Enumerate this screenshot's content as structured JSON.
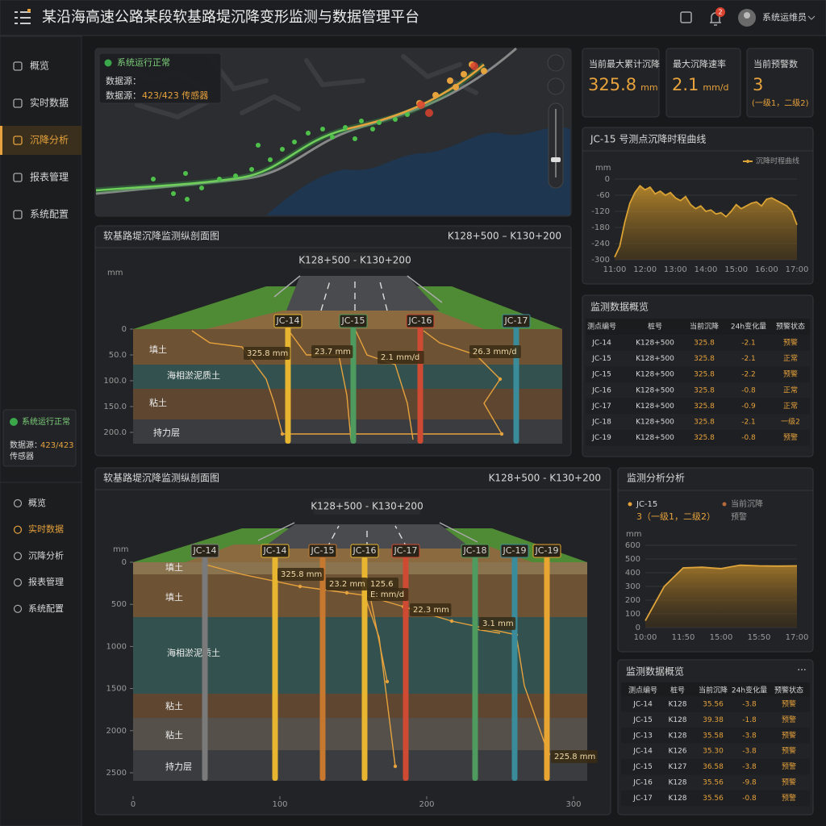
{
  "header": {
    "title": "某沿海高速公路某段软基路堤沉降变形监测与数据管理平台",
    "badge": "2",
    "user": "系统运维员"
  },
  "sidebar": {
    "nav": [
      "概览",
      "实时数据",
      "沉降分析",
      "报表管理",
      "系统配置"
    ],
    "active": 2,
    "status": "系统运行正常",
    "source_prefix": "数据源：",
    "source_value": "423/423",
    "source_suffix": "传感器",
    "nav2": [
      "概览",
      "实时数据",
      "沉降分析",
      "报表管理",
      "系统配置"
    ],
    "nav2_active": 1
  },
  "map": {
    "status": "系统运行正常",
    "source_label": "数据源：",
    "source_prefix": "数据源：",
    "source_value": "423/423 传感器"
  },
  "kpis": [
    {
      "label": "当前最大累计沉降",
      "value": "325.8",
      "unit": "mm"
    },
    {
      "label": "最大沉降速率",
      "value": "2.1",
      "unit": "mm/d"
    },
    {
      "label": "当前预警数",
      "value": "3",
      "note": "(一级1，二级2)"
    }
  ],
  "chart_data": [
    {
      "type": "area",
      "title": "JC-15 号测点沉降时程曲线",
      "y_label": "mm",
      "categories": [
        "11:00",
        null,
        null,
        null,
        null,
        null,
        "12:00",
        null,
        null,
        null,
        null,
        null,
        "13:00",
        null,
        null,
        null,
        null,
        null,
        "14:00",
        null,
        null,
        null,
        null,
        null,
        "15:00",
        null,
        null,
        null,
        null,
        null,
        "16:00",
        null,
        null,
        null,
        null,
        null,
        "17:00"
      ],
      "series": [
        {
          "name": "沉降时程曲线",
          "color": "#d9a233",
          "values": [
            -290,
            -250,
            -160,
            -90,
            -50,
            -25,
            -40,
            -30,
            -55,
            -45,
            -60,
            -50,
            -70,
            -80,
            -65,
            -95,
            -110,
            -100,
            -120,
            -115,
            -130,
            -125,
            -140,
            -120,
            -95,
            -110,
            -100,
            -90,
            -85,
            -100,
            -75,
            -70,
            -80,
            -90,
            -100,
            -120,
            -170
          ]
        }
      ],
      "ylim": [
        -300,
        0
      ],
      "yticks": [
        0,
        -60,
        -120,
        -180,
        -240,
        -300
      ],
      "grid": true
    },
    {
      "type": "area",
      "title": "监测分析分析",
      "subject": "JC-15",
      "note": "3（一级1，二级2）",
      "note2": "预警",
      "y_label": "mm",
      "categories": [
        "10:00",
        null,
        "11:50",
        null,
        "15:00",
        null,
        "15:50",
        null,
        "17:00"
      ],
      "series": [
        {
          "name": "当前沉降",
          "color": "#e0a53a",
          "values": [
            50,
            300,
            435,
            440,
            430,
            455,
            450,
            448,
            450
          ]
        }
      ],
      "ylim": [
        0,
        600
      ],
      "yticks": [
        0,
        100,
        200,
        300,
        400,
        500,
        600
      ],
      "grid": true
    }
  ],
  "tables": [
    {
      "title": "监测数据概览",
      "columns": [
        "测点编号",
        "桩号",
        "当前沉降",
        "24h变化量",
        "预警状态"
      ],
      "rows": [
        [
          "JC-14",
          "K128+500",
          "325.8",
          "-2.1",
          "预警"
        ],
        [
          "JC-15",
          "K128+500",
          "325.8",
          "-2.1",
          "正常"
        ],
        [
          "JC-15",
          "K128+500",
          "325.8",
          "-2.2",
          "预警"
        ],
        [
          "JC-16",
          "K128+500",
          "325.8",
          "-0.8",
          "正常"
        ],
        [
          "JC-17",
          "K128+500",
          "325.8",
          "-0.9",
          "正常"
        ],
        [
          "JC-18",
          "K128+500",
          "325.8",
          "-2.1",
          "一级2"
        ],
        [
          "JC-19",
          "K128+500",
          "325.8",
          "-0.8",
          "预警"
        ]
      ]
    },
    {
      "title": "监测数据概览",
      "menu": "···",
      "columns": [
        "测点编号",
        "桩号",
        "当前沉降",
        "24h变化量",
        "预警状态"
      ],
      "rows": [
        [
          "JC-14",
          "K128",
          "35.56",
          "-3.8",
          "预警"
        ],
        [
          "JC-15",
          "K128",
          "39.38",
          "-1.8",
          "预警"
        ],
        [
          "JC-13",
          "K128",
          "35.58",
          "-3.8",
          "预警"
        ],
        [
          "JC-14",
          "K126",
          "35.30",
          "-3.8",
          "预警"
        ],
        [
          "JC-15",
          "K127",
          "36.58",
          "-3.8",
          "预警"
        ],
        [
          "JC-16",
          "K128",
          "35.56",
          "-9.8",
          "预警"
        ],
        [
          "JC-17",
          "K128",
          "35.56",
          "-0.8",
          "预警"
        ]
      ]
    }
  ],
  "profiles": [
    {
      "title": "软基路堤沉降监测纵剖面图",
      "range": "K128+500 – K130+200",
      "section_label": "K128+500 - K130+200",
      "y_label": "mm",
      "ylim": [
        0,
        200
      ],
      "yticks": [
        0,
        {
          "value": 50,
          "label": "50.0"
        },
        {
          "value": 100,
          "label": "100.0"
        },
        {
          "value": 150,
          "label": "150.0"
        },
        {
          "value": 200,
          "label": "200.0"
        }
      ],
      "layers": [
        "填土",
        "海相淤泥质土",
        "粘土",
        "持力层"
      ],
      "sensors": [
        {
          "name": "JC-14",
          "color": "#e8b531"
        },
        {
          "name": "JC-15",
          "color": "#4f9a5e"
        },
        {
          "name": "JC-16",
          "color": "#cf4a33"
        },
        {
          "name": "JC-17",
          "color": "#3a8c9a"
        }
      ],
      "annotations": [
        "325.8 mm",
        "23.7 mm",
        "2.1 mm/d",
        "26.3 mm/d"
      ]
    },
    {
      "title": "软基路堤沉降监测纵剖面图",
      "range": "K128+500 - K130+200",
      "section_label": "K128+500 - K130+200",
      "y_label": "mm",
      "ylim": [
        0,
        2500
      ],
      "yticks": [
        0,
        500,
        1000,
        1500,
        2000,
        2500
      ],
      "xlim": [
        0,
        300
      ],
      "xticks": [
        0,
        100,
        200,
        300
      ],
      "layers": [
        "填土",
        "填土",
        "海相淤泥质土",
        "粘土",
        "粘土",
        "持力层"
      ],
      "sensors": [
        {
          "name": "JC-14",
          "color": "#7a7a7a"
        },
        {
          "name": "JC-14",
          "color": "#e8b531"
        },
        {
          "name": "JC-15",
          "color": "#c7782f"
        },
        {
          "name": "JC-16",
          "color": "#e8b531"
        },
        {
          "name": "JC-17",
          "color": "#cf4a33"
        },
        {
          "name": "JC-18",
          "color": "#4f9a5e"
        },
        {
          "name": "JC-19",
          "color": "#3a8c9a"
        },
        {
          "name": "JC-19",
          "color": "#e8a531"
        }
      ],
      "annotations": [
        "325.8 mm",
        "23.2 mm",
        "125.6",
        "E: mm/d",
        "22.3 mm",
        "3.1 mm",
        "225.8 mm"
      ]
    }
  ]
}
